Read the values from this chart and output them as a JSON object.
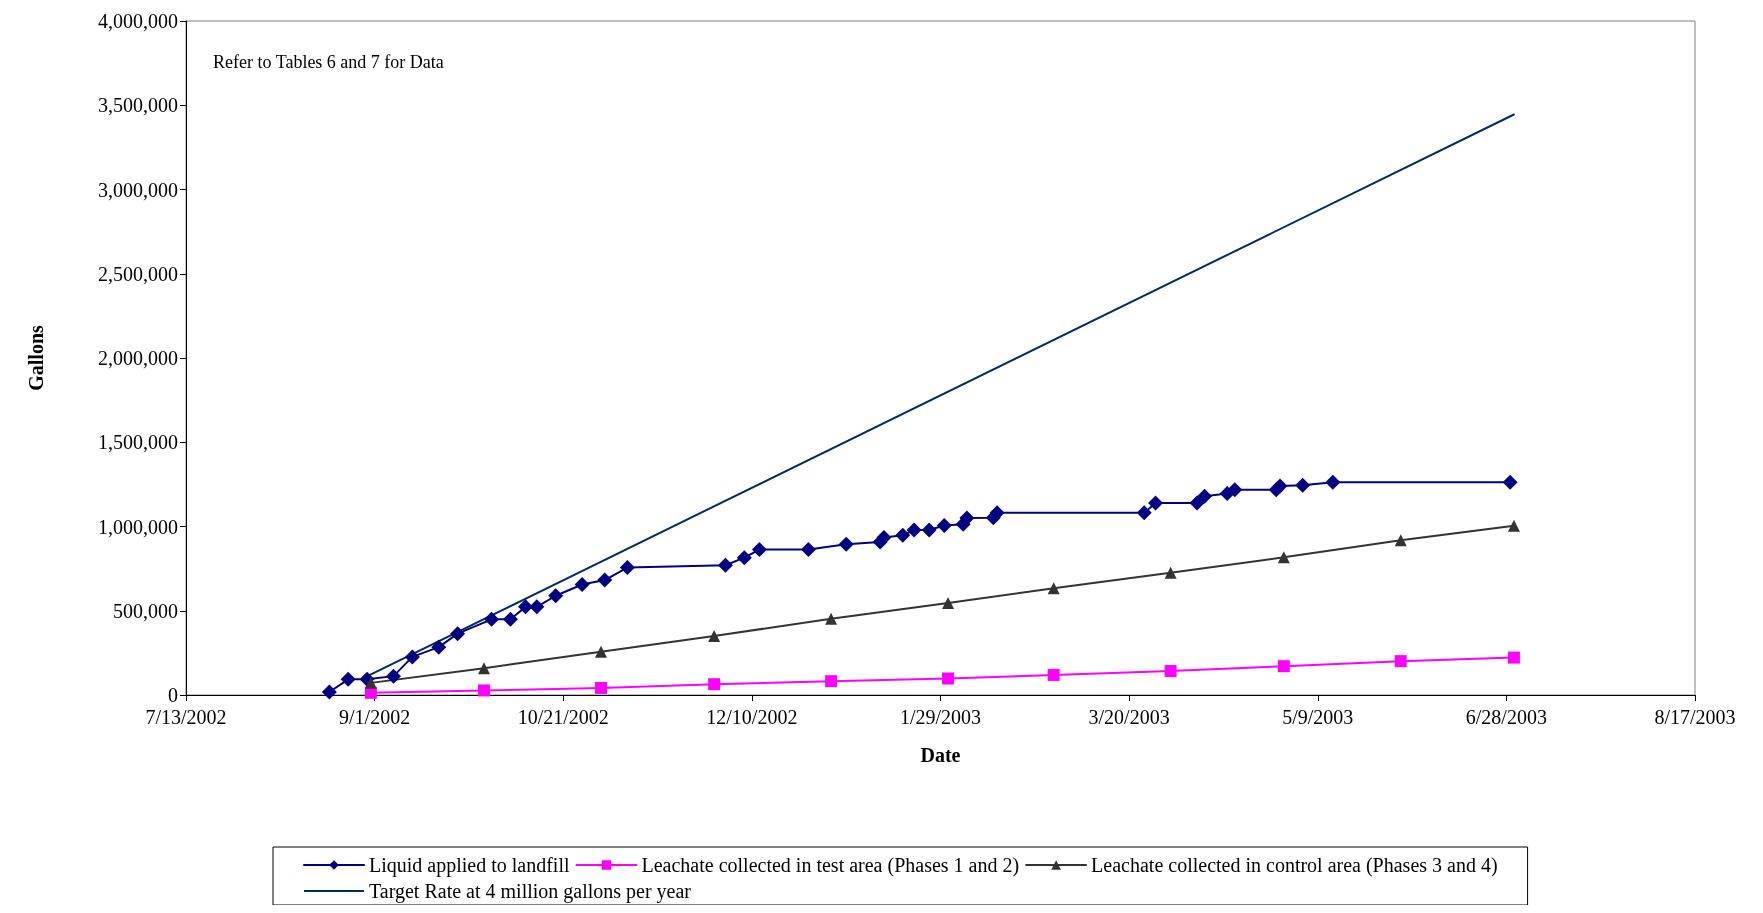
{
  "chart_data": {
    "type": "line",
    "xlabel": "Date",
    "ylabel": "Gallons",
    "annotations": [
      "Refer to Tables 6 and 7 for Data"
    ],
    "xlim": [
      "2002-07-13",
      "2003-08-17"
    ],
    "xticks": [
      {
        "value": "2002-07-13",
        "label": "7/13/2002"
      },
      {
        "value": "2002-09-01",
        "label": "9/1/2002"
      },
      {
        "value": "2002-10-21",
        "label": "10/21/2002"
      },
      {
        "value": "2002-12-10",
        "label": "12/10/2002"
      },
      {
        "value": "2003-01-29",
        "label": "1/29/2003"
      },
      {
        "value": "2003-03-20",
        "label": "3/20/2003"
      },
      {
        "value": "2003-05-09",
        "label": "5/9/2003"
      },
      {
        "value": "2003-06-28",
        "label": "6/28/2003"
      },
      {
        "value": "2003-08-17",
        "label": "8/17/2003"
      }
    ],
    "ylim": [
      0,
      4000000
    ],
    "yticks": [
      0,
      {
        "value": 500000,
        "label": "500,000"
      },
      {
        "value": 1000000,
        "label": "1,000,000"
      },
      {
        "value": 1500000,
        "label": "1,500,000"
      },
      {
        "value": 2000000,
        "label": "2,000,000"
      },
      {
        "value": 2500000,
        "label": "2,500,000"
      },
      {
        "value": 3000000,
        "label": "3,000,000"
      },
      {
        "value": 3500000,
        "label": "3,500,000"
      },
      {
        "value": 4000000,
        "label": "4,000,000"
      }
    ],
    "grid": false,
    "legend": "bottom",
    "series": [
      {
        "name": "Liquid applied to landfill",
        "color": "#000080",
        "marker": "diamond",
        "x": [
          "2002-08-20",
          "2002-08-25",
          "2002-08-30",
          "2002-09-06",
          "2002-09-11",
          "2002-09-18",
          "2002-09-23",
          "2002-10-02",
          "2002-10-07",
          "2002-10-11",
          "2002-10-14",
          "2002-10-19",
          "2002-10-26",
          "2002-11-01",
          "2002-11-07",
          "2002-12-03",
          "2002-12-08",
          "2002-12-12",
          "2002-12-25",
          "2003-01-04",
          "2003-01-13",
          "2003-01-14",
          "2003-01-19",
          "2003-01-22",
          "2003-01-26",
          "2003-01-30",
          "2003-02-04",
          "2003-02-05",
          "2003-02-12",
          "2003-02-13",
          "2003-03-24",
          "2003-03-27",
          "2003-04-07",
          "2003-04-09",
          "2003-04-15",
          "2003-04-17",
          "2003-04-28",
          "2003-04-29",
          "2003-05-05",
          "2003-05-13",
          "2003-06-29"
        ],
        "values": [
          18000,
          93000,
          93000,
          112000,
          226000,
          284000,
          364000,
          449000,
          449000,
          523000,
          523000,
          589000,
          656000,
          682000,
          756000,
          770000,
          815000,
          863000,
          863000,
          895000,
          908000,
          935000,
          948000,
          979000,
          979000,
          1006000,
          1013000,
          1050000,
          1052000,
          1081000,
          1081000,
          1139000,
          1139000,
          1180000,
          1196000,
          1218000,
          1218000,
          1240000,
          1245000,
          1263000,
          1263000
        ]
      },
      {
        "name": "Leachate collected in test area (Phases 1 and 2)",
        "color": "#ff00ff",
        "marker": "square",
        "x": [
          "2002-08-31",
          "2002-09-30",
          "2002-10-31",
          "2002-11-30",
          "2002-12-31",
          "2003-01-31",
          "2003-02-28",
          "2003-03-31",
          "2003-04-30",
          "2003-05-31",
          "2003-06-30"
        ],
        "values": [
          13000,
          27000,
          42000,
          64000,
          82000,
          98000,
          119000,
          142000,
          171000,
          201000,
          222000
        ]
      },
      {
        "name": "Leachate collected in control area (Phases 3 and 4)",
        "color": "#333333",
        "marker": "triangle",
        "x": [
          "2002-08-31",
          "2002-09-30",
          "2002-10-31",
          "2002-11-30",
          "2002-12-31",
          "2003-01-31",
          "2003-02-28",
          "2003-03-31",
          "2003-04-30",
          "2003-05-31",
          "2003-06-30"
        ],
        "values": [
          72000,
          159000,
          257000,
          350000,
          453000,
          546000,
          633000,
          726000,
          817000,
          918000,
          1004000
        ]
      },
      {
        "name": "Target Rate at 4 million gallons per year",
        "color": "#002b5c",
        "marker": "none",
        "x": [
          "2002-08-29",
          "2003-06-30"
        ],
        "values": [
          100000,
          3445000
        ]
      }
    ]
  }
}
